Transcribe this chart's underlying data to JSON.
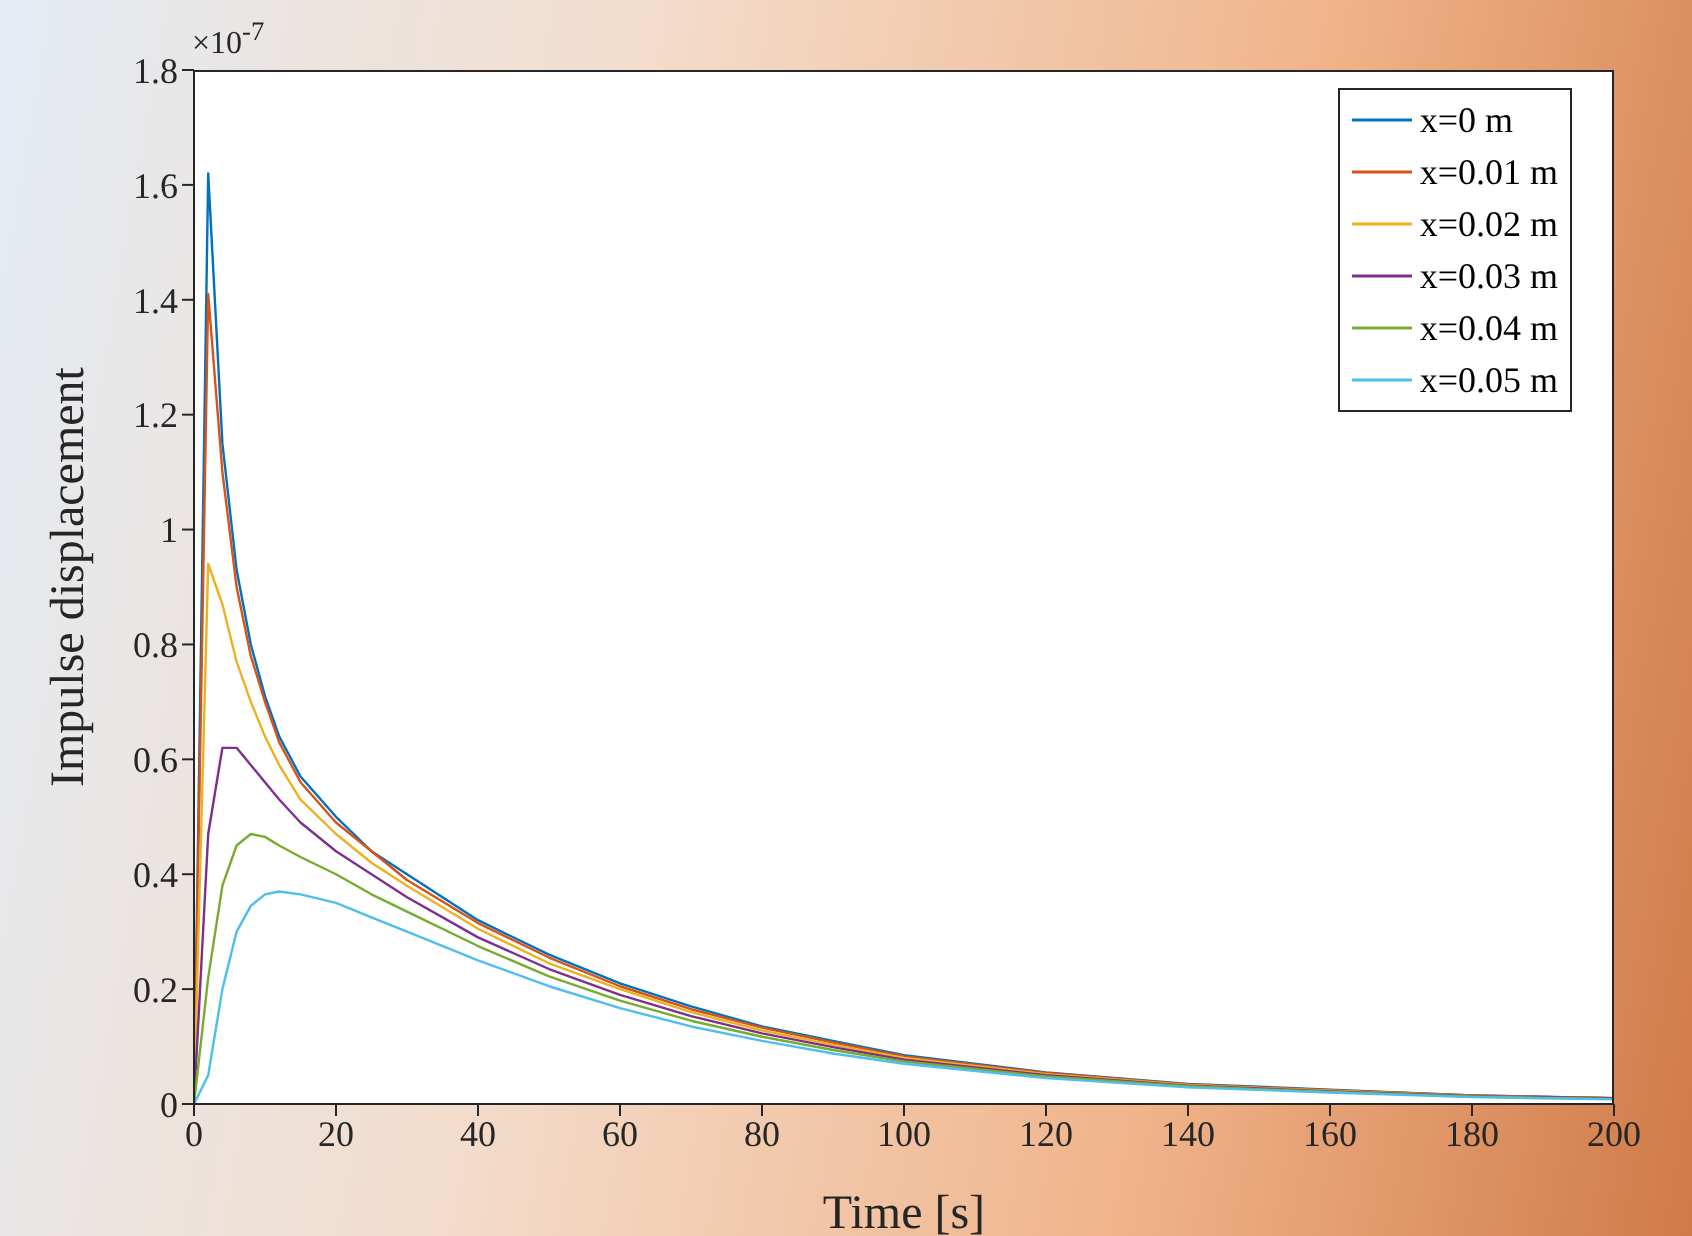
{
  "chart_data": {
    "type": "line",
    "xlabel": "Time [s]",
    "ylabel": "Impulse displacement",
    "annotations": [
      "×10$^{-7}$"
    ],
    "x": [
      0,
      2,
      4,
      6,
      8,
      10,
      12,
      15,
      20,
      25,
      30,
      40,
      50,
      60,
      70,
      80,
      90,
      100,
      120,
      140,
      160,
      180,
      200
    ],
    "series": [
      {
        "name": "x=0 m",
        "color": "#0072bd",
        "values": [
          0,
          1.62,
          1.15,
          0.93,
          0.8,
          0.71,
          0.64,
          0.57,
          0.5,
          0.44,
          0.4,
          0.32,
          0.26,
          0.21,
          0.17,
          0.135,
          0.11,
          0.085,
          0.055,
          0.035,
          0.025,
          0.015,
          0.01
        ]
      },
      {
        "name": "x=0.01 m",
        "color": "#d95319",
        "values": [
          0,
          1.41,
          1.1,
          0.9,
          0.78,
          0.7,
          0.63,
          0.56,
          0.49,
          0.44,
          0.39,
          0.315,
          0.255,
          0.205,
          0.165,
          0.133,
          0.107,
          0.083,
          0.054,
          0.034,
          0.024,
          0.015,
          0.01
        ]
      },
      {
        "name": "x=0.02 m",
        "color": "#edb120",
        "values": [
          0,
          0.94,
          0.87,
          0.77,
          0.7,
          0.64,
          0.59,
          0.53,
          0.47,
          0.42,
          0.38,
          0.305,
          0.245,
          0.2,
          0.16,
          0.128,
          0.103,
          0.08,
          0.052,
          0.033,
          0.023,
          0.014,
          0.01
        ]
      },
      {
        "name": "x=0.03 m",
        "color": "#7e2f8e",
        "values": [
          0,
          0.47,
          0.62,
          0.62,
          0.59,
          0.56,
          0.53,
          0.49,
          0.44,
          0.4,
          0.36,
          0.29,
          0.235,
          0.19,
          0.153,
          0.123,
          0.099,
          0.077,
          0.05,
          0.032,
          0.022,
          0.014,
          0.01
        ]
      },
      {
        "name": "x=0.04 m",
        "color": "#77ac30",
        "values": [
          0,
          0.22,
          0.38,
          0.45,
          0.47,
          0.465,
          0.45,
          0.43,
          0.4,
          0.365,
          0.335,
          0.275,
          0.222,
          0.18,
          0.145,
          0.117,
          0.094,
          0.074,
          0.048,
          0.031,
          0.021,
          0.013,
          0.009
        ]
      },
      {
        "name": "x=0.05 m",
        "color": "#4dbeee",
        "values": [
          0,
          0.05,
          0.2,
          0.3,
          0.345,
          0.365,
          0.37,
          0.365,
          0.35,
          0.325,
          0.3,
          0.25,
          0.205,
          0.167,
          0.135,
          0.11,
          0.088,
          0.07,
          0.045,
          0.029,
          0.02,
          0.012,
          0.008
        ]
      }
    ],
    "xlim": [
      0,
      200
    ],
    "xticks": [
      0,
      20,
      40,
      60,
      80,
      100,
      120,
      140,
      160,
      180,
      200
    ],
    "ylim": [
      0,
      1.8
    ],
    "yticks": [
      0,
      0.2,
      0.4,
      0.6,
      0.8,
      1,
      1.2,
      1.4,
      1.6,
      1.8
    ],
    "grid": false,
    "legend": "top right"
  }
}
